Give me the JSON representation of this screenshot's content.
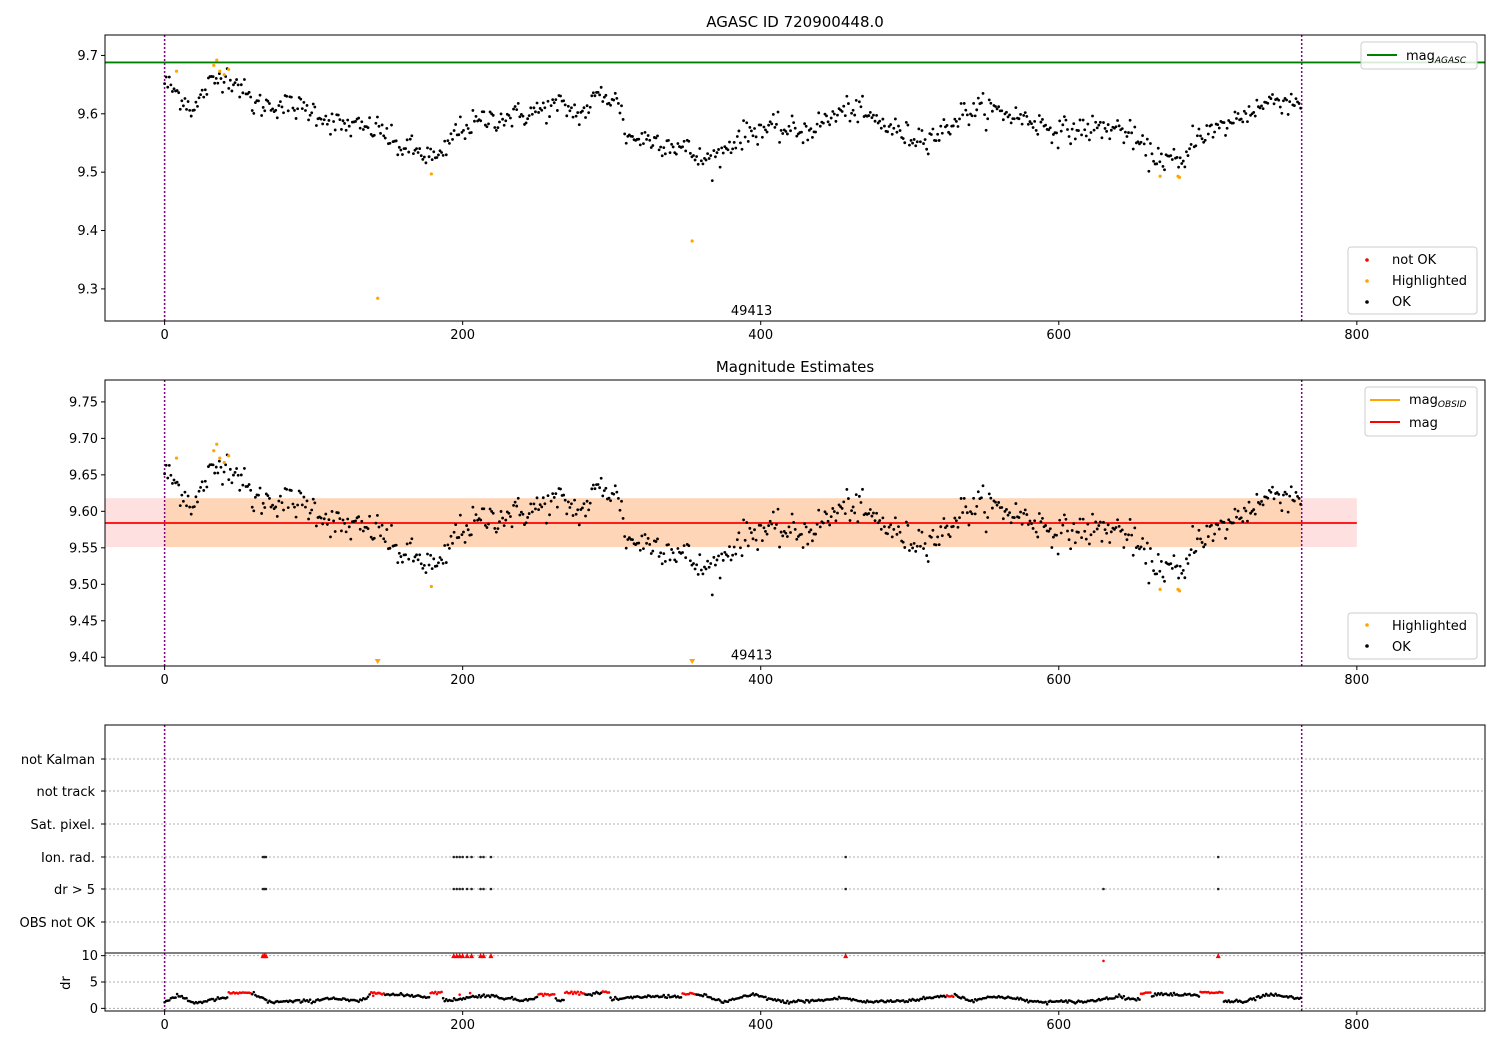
{
  "chart_data": [
    {
      "type": "scatter",
      "title": "AGASC ID 720900448.0",
      "xlim": [
        -40,
        886
      ],
      "ylim": [
        9.245,
        9.735
      ],
      "xticks": [
        0,
        200,
        400,
        600,
        800
      ],
      "yticks": [
        9.3,
        9.4,
        9.5,
        9.6,
        9.7
      ],
      "ytick_labels": [
        "9.3",
        "9.4",
        "9.5",
        "9.6",
        "9.7"
      ],
      "obsid_label": {
        "text": "49413",
        "x": 380,
        "y": 9.255
      },
      "vlines": [
        0,
        763
      ],
      "hline": {
        "value": 9.688,
        "color": "#008000"
      },
      "legend_line": {
        "label": "mag",
        "sub": "AGASC",
        "color": "#008000",
        "loc": "upper right"
      },
      "legend_points": {
        "loc": "lower right",
        "entries": [
          {
            "label": "not OK",
            "color": "#ff0000"
          },
          {
            "label": "Highlighted",
            "color": "#ffa500"
          },
          {
            "label": "OK",
            "color": "#000000"
          }
        ]
      },
      "highlighted": [
        [
          8,
          9.673
        ],
        [
          33,
          9.683
        ],
        [
          35,
          9.692
        ],
        [
          37,
          9.673
        ],
        [
          40,
          9.667
        ],
        [
          43,
          9.676
        ],
        [
          143,
          9.284
        ],
        [
          179,
          9.497
        ],
        [
          354,
          9.382
        ],
        [
          668,
          9.493
        ],
        [
          680,
          9.493
        ],
        [
          681,
          9.491
        ]
      ]
    },
    {
      "type": "scatter",
      "title": "Magnitude Estimates",
      "xlim": [
        -40,
        886
      ],
      "ylim": [
        9.388,
        9.78
      ],
      "xticks": [
        0,
        200,
        400,
        600,
        800
      ],
      "yticks": [
        9.4,
        9.45,
        9.5,
        9.55,
        9.6,
        9.65,
        9.7,
        9.75
      ],
      "ytick_labels": [
        "9.40",
        "9.45",
        "9.50",
        "9.55",
        "9.60",
        "9.65",
        "9.70",
        "9.75"
      ],
      "obsid_label": {
        "text": "49413",
        "x": 380,
        "y": 9.397
      },
      "vlines": [
        0,
        763
      ],
      "mag_line": {
        "value": 9.584,
        "color": "#ff0000"
      },
      "band_obsid": {
        "x": [
          0,
          763
        ],
        "lower": 9.551,
        "upper": 9.618,
        "color": "#ffa500"
      },
      "band_mag": {
        "x": [
          -40,
          800
        ],
        "lower": 9.551,
        "upper": 9.618,
        "color": "#ff0000"
      },
      "legend_lines": {
        "loc": "upper right",
        "entries": [
          {
            "label": "mag",
            "sub": "OBSID",
            "color": "#ffa500"
          },
          {
            "label": "mag",
            "sub": "",
            "color": "#ff0000"
          }
        ]
      },
      "legend_points": {
        "loc": "lower right",
        "entries": [
          {
            "label": "Highlighted",
            "color": "#ffa500"
          },
          {
            "label": "OK",
            "color": "#000000"
          }
        ]
      },
      "highlighted": [
        [
          8,
          9.673
        ],
        [
          33,
          9.683
        ],
        [
          35,
          9.692
        ],
        [
          37,
          9.673
        ],
        [
          40,
          9.667
        ],
        [
          43,
          9.676
        ],
        [
          179,
          9.497
        ],
        [
          668,
          9.493
        ],
        [
          680,
          9.493
        ],
        [
          681,
          9.491
        ]
      ],
      "off_scale_markers": [
        143,
        354
      ]
    },
    {
      "type": "scatter",
      "xlim": [
        -40,
        886
      ],
      "categories": [
        "not Kalman",
        "not track",
        "Sat. pixel.",
        "Ion. rad.",
        "dr > 5",
        "OBS not OK"
      ],
      "vlines": [
        0,
        763
      ],
      "flags": {
        "Ion. rad.": [
          66,
          67,
          68,
          194,
          196,
          198,
          200,
          203,
          206,
          212,
          214,
          219,
          457,
          707
        ],
        "dr > 5": [
          66,
          67,
          68,
          194,
          196,
          198,
          200,
          203,
          206,
          212,
          214,
          219,
          457,
          630,
          707
        ]
      }
    },
    {
      "type": "scatter",
      "ylabel": "dr",
      "xlim": [
        -40,
        886
      ],
      "ylim": [
        -0.5,
        10.5
      ],
      "xticks": [
        0,
        200,
        400,
        600,
        800
      ],
      "yticks": [
        0,
        5,
        10
      ],
      "ytick_labels": [
        "0",
        "5",
        "10"
      ],
      "vlines": [
        0,
        763
      ],
      "clipped_markers": [
        66,
        67,
        68,
        194,
        196,
        198,
        200,
        203,
        206,
        212,
        214,
        219,
        457,
        707
      ],
      "red_spans": [
        [
          42,
          58,
          2.9
        ],
        [
          138,
          147,
          2.9
        ],
        [
          178,
          186,
          3.0
        ],
        [
          250,
          262,
          2.6
        ],
        [
          268,
          282,
          3.0
        ],
        [
          293,
          299,
          3.1
        ],
        [
          347,
          356,
          2.7
        ],
        [
          525,
          530,
          2.3
        ],
        [
          655,
          662,
          2.9
        ],
        [
          695,
          710,
          3.0
        ]
      ],
      "red_points": [
        [
          140,
          2.4
        ],
        [
          143,
          2.9
        ],
        [
          198,
          2.6
        ],
        [
          205,
          2.9
        ],
        [
          630,
          9.0
        ]
      ]
    }
  ]
}
